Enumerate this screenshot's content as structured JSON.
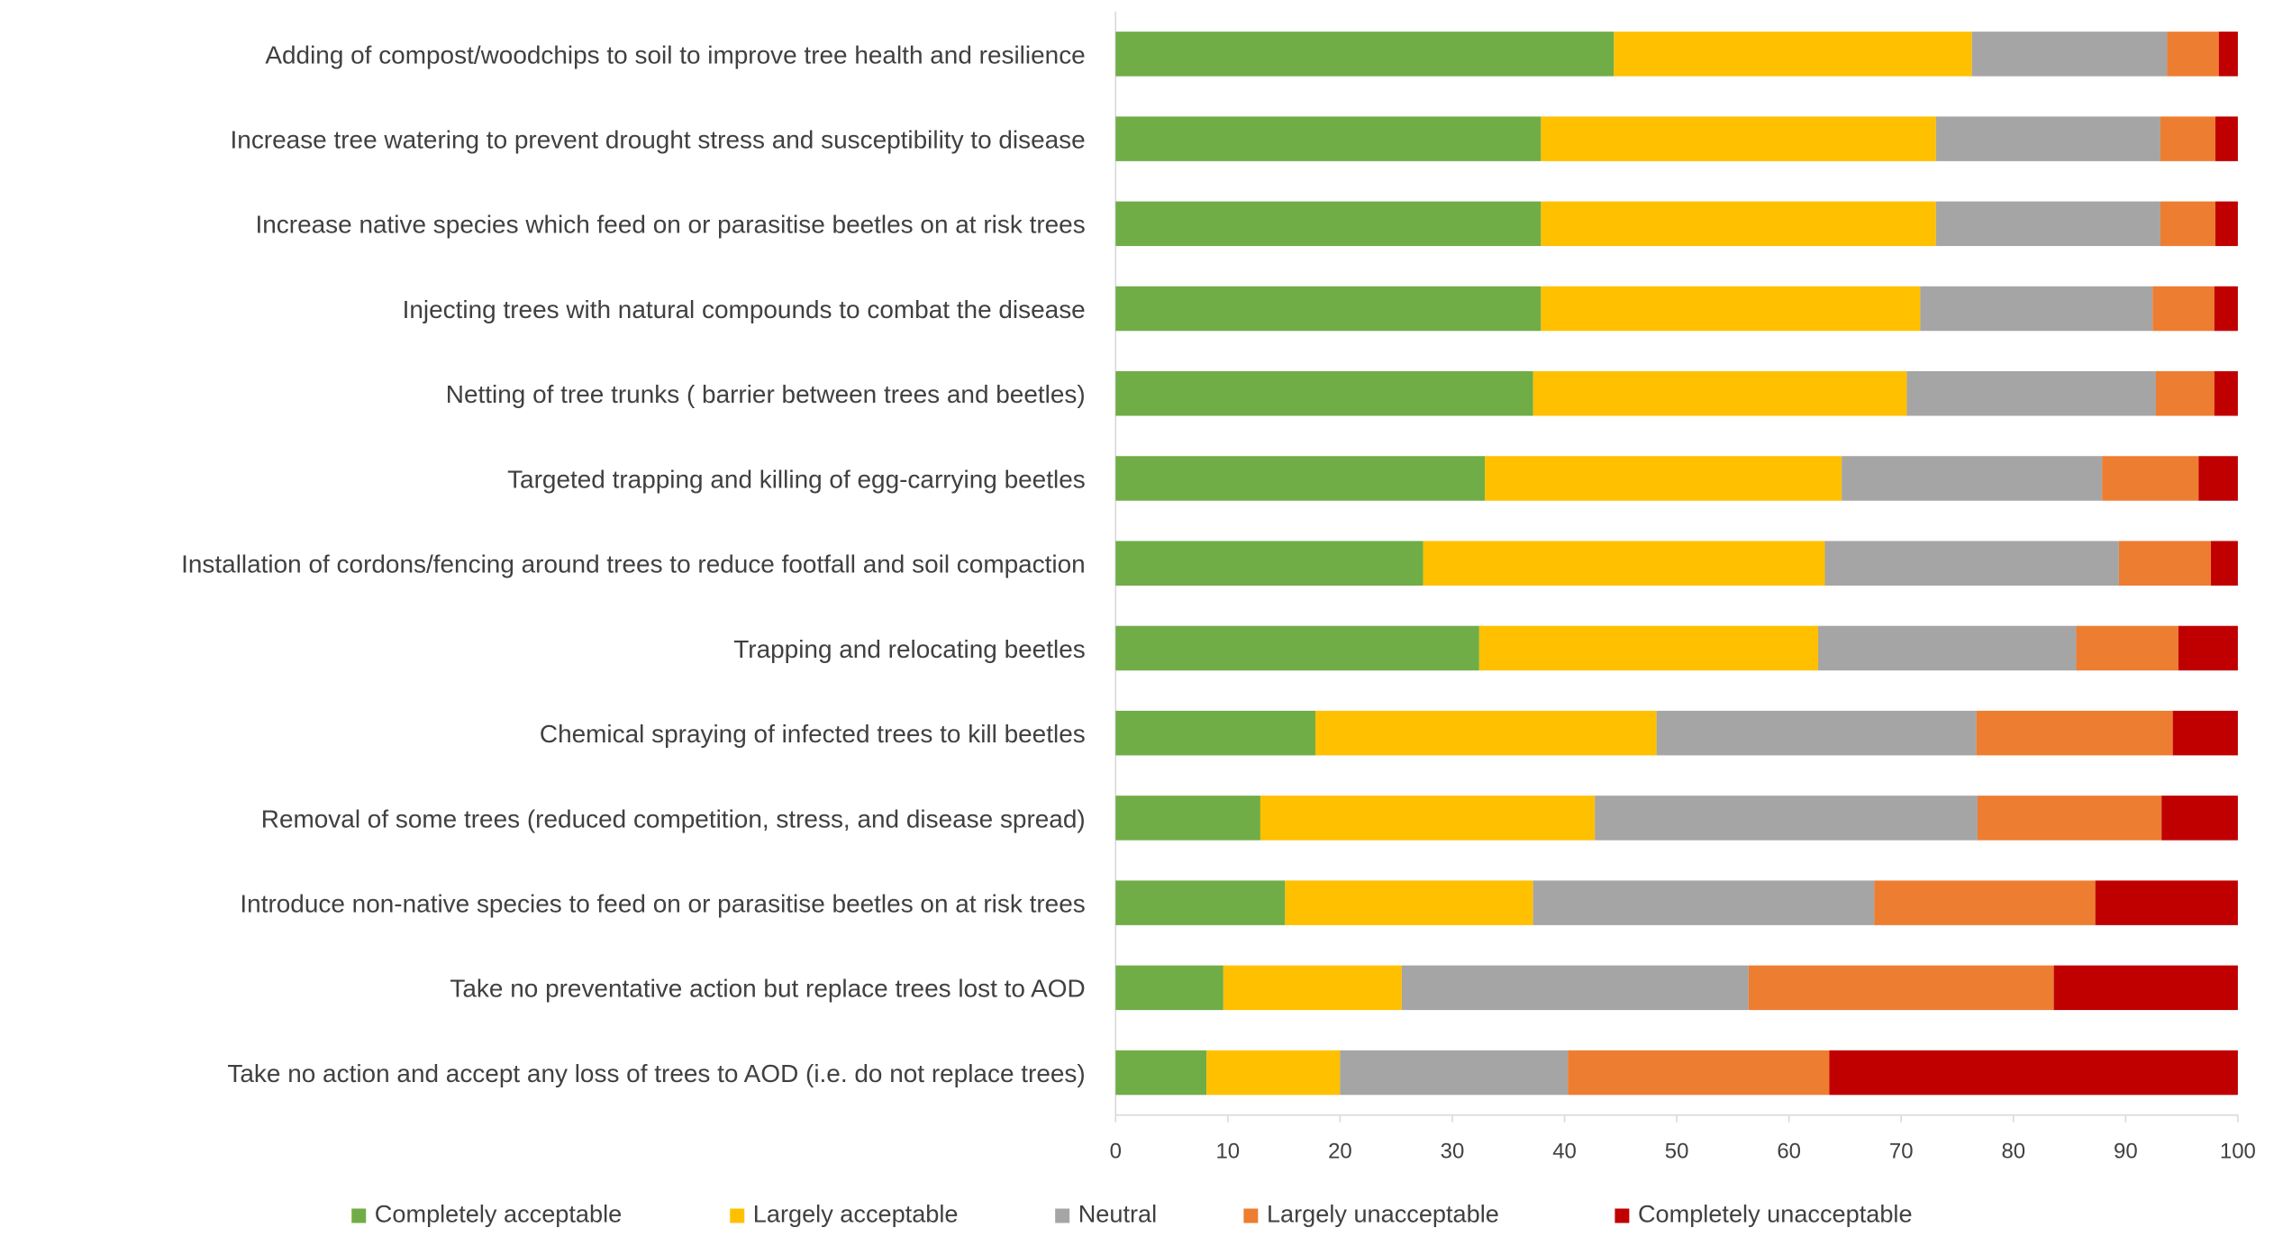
{
  "chart_data": {
    "type": "stacked-bar-horizontal",
    "categories": [
      "Adding of compost/woodchips to soil to improve tree health and resilience",
      "Increase tree watering to prevent drought stress and susceptibility to disease",
      "Increase native species which feed on or parasitise beetles on at risk trees",
      "Injecting trees with natural compounds to combat the disease",
      "Netting of tree trunks ( barrier between trees and beetles)",
      "Targeted trapping and killing of egg-carrying beetles",
      "Installation of cordons/fencing around trees to reduce footfall and soil compaction",
      "Trapping and relocating beetles",
      "Chemical spraying of infected trees to kill beetles",
      "Removal of some trees (reduced competition, stress, and disease spread)",
      "Introduce non-native species to feed on or parasitise beetles on at risk trees",
      "Take no preventative action but replace trees lost to AOD",
      "Take no action and accept any loss of trees to AOD (i.e. do not replace trees)"
    ],
    "series": [
      {
        "name": "Completely acceptable",
        "color": "#70ad47",
        "values": [
          44.4,
          37.9,
          37.9,
          37.9,
          37.2,
          32.9,
          27.4,
          32.4,
          17.8,
          12.9,
          15.1,
          9.6,
          8.1
        ]
      },
      {
        "name": "Largely acceptable",
        "color": "#ffc000",
        "values": [
          31.9,
          35.2,
          35.2,
          33.8,
          33.3,
          31.8,
          35.8,
          30.2,
          30.4,
          29.8,
          22.1,
          15.9,
          11.9
        ]
      },
      {
        "name": "Neutral",
        "color": "#a5a5a5",
        "values": [
          17.4,
          20.0,
          20.0,
          20.7,
          22.2,
          23.2,
          26.2,
          23.0,
          28.5,
          34.1,
          30.4,
          30.9,
          20.3
        ]
      },
      {
        "name": "Largely unacceptable",
        "color": "#ed7d31",
        "values": [
          4.6,
          4.9,
          4.9,
          5.5,
          5.2,
          8.6,
          8.2,
          9.1,
          17.5,
          16.4,
          19.7,
          27.2,
          23.3
        ]
      },
      {
        "name": "Completely unacceptable",
        "color": "#c00000",
        "values": [
          1.7,
          2.0,
          2.0,
          2.1,
          2.1,
          3.5,
          2.4,
          5.3,
          5.8,
          6.8,
          12.7,
          16.4,
          36.4
        ]
      }
    ],
    "xlim": [
      0,
      100
    ],
    "xticks": [
      0,
      10,
      20,
      30,
      40,
      50,
      60,
      70,
      80,
      90,
      100
    ],
    "legend": "bottom"
  }
}
